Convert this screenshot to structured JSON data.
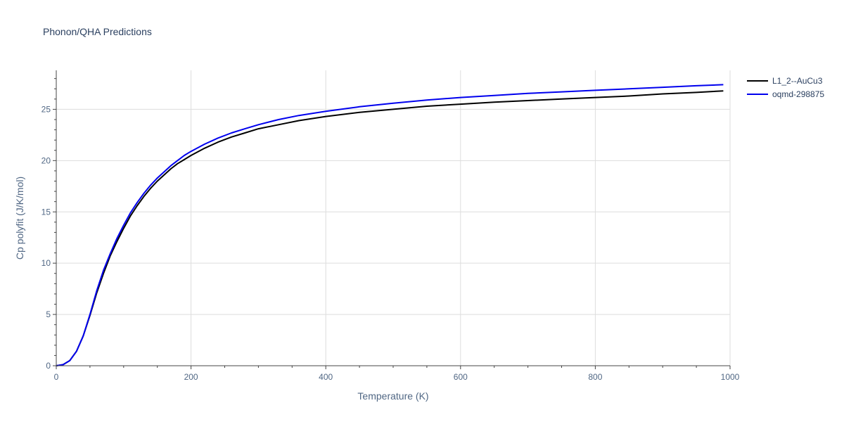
{
  "chart_data": {
    "type": "line",
    "title": "Phonon/QHA Predictions",
    "xlabel": "Temperature (K)",
    "ylabel": "Cp polyfit (J/K/mol)",
    "xlim": [
      0,
      1000
    ],
    "ylim": [
      0,
      28.8
    ],
    "x_ticks": [
      0,
      200,
      400,
      600,
      800,
      1000
    ],
    "y_ticks": [
      0,
      5,
      10,
      15,
      20,
      25
    ],
    "grid": true,
    "legend_position": "top-right",
    "series": [
      {
        "name": "L1_2--AuCu3",
        "color": "#000000",
        "x": [
          0,
          10,
          20,
          30,
          40,
          50,
          60,
          70,
          80,
          90,
          100,
          110,
          120,
          130,
          140,
          150,
          160,
          170,
          180,
          190,
          200,
          220,
          240,
          260,
          280,
          300,
          330,
          360,
          400,
          450,
          500,
          550,
          600,
          650,
          700,
          750,
          800,
          850,
          900,
          950,
          990
        ],
        "y": [
          0,
          0.1,
          0.5,
          1.4,
          2.9,
          4.9,
          7.1,
          9.0,
          10.7,
          12.1,
          13.4,
          14.6,
          15.6,
          16.5,
          17.3,
          18.0,
          18.6,
          19.2,
          19.7,
          20.1,
          20.5,
          21.2,
          21.8,
          22.3,
          22.7,
          23.1,
          23.5,
          23.9,
          24.3,
          24.7,
          25.0,
          25.3,
          25.5,
          25.7,
          25.85,
          26.0,
          26.15,
          26.3,
          26.5,
          26.65,
          26.8
        ]
      },
      {
        "name": "oqmd-298875",
        "color": "#0000ee",
        "x": [
          0,
          10,
          20,
          30,
          40,
          50,
          60,
          70,
          80,
          90,
          100,
          110,
          120,
          130,
          140,
          150,
          160,
          170,
          180,
          190,
          200,
          220,
          240,
          260,
          280,
          300,
          330,
          360,
          400,
          450,
          500,
          550,
          600,
          650,
          700,
          750,
          800,
          850,
          900,
          950,
          990
        ],
        "y": [
          0,
          0.1,
          0.5,
          1.4,
          2.9,
          5.0,
          7.3,
          9.3,
          10.9,
          12.4,
          13.7,
          14.9,
          15.9,
          16.8,
          17.6,
          18.3,
          18.9,
          19.5,
          20.0,
          20.5,
          20.9,
          21.6,
          22.2,
          22.7,
          23.1,
          23.5,
          24.0,
          24.4,
          24.8,
          25.25,
          25.6,
          25.9,
          26.15,
          26.35,
          26.55,
          26.7,
          26.85,
          27.0,
          27.15,
          27.3,
          27.4
        ]
      }
    ]
  }
}
